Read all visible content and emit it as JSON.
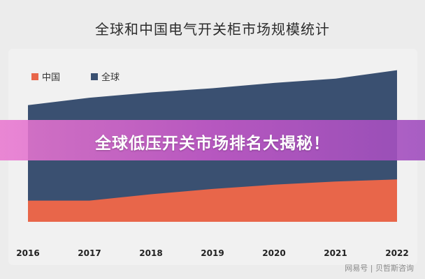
{
  "title": "全球和中国电气开关柜市场规模统计",
  "banner": "全球低压开关市场排名大揭秘！",
  "watermark": "网易号 | 贝哲斯咨询",
  "colors": {
    "china": "#e8664a",
    "global": "#3a5071"
  },
  "chart_data": {
    "type": "area",
    "x": [
      "2016",
      "2017",
      "2018",
      "2019",
      "2020",
      "2021",
      "2022"
    ],
    "series": [
      {
        "name": "中国",
        "values": [
          20,
          20,
          26,
          31,
          35,
          38,
          40
        ],
        "color": "#e8664a"
      },
      {
        "name": "全球",
        "values": [
          110,
          117,
          122,
          126,
          131,
          135,
          143
        ],
        "color": "#3a5071"
      }
    ],
    "ylim": [
      0,
      150
    ],
    "legend": "top-left",
    "grid": false,
    "xlabel": "",
    "ylabel": ""
  }
}
